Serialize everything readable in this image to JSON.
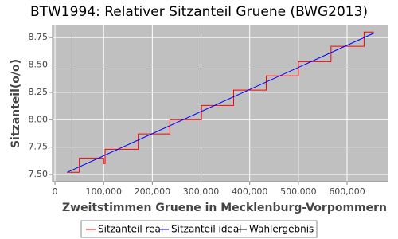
{
  "chart_data": {
    "type": "line",
    "title": "BTW1994: Relativer Sitzanteil Gruene (BWG2013)",
    "x_label": "Zweitstimmen Gruene in Mecklenburg-Vorpommern",
    "y_label": "Sitzanteil(o/o)",
    "xlim": [
      -5000,
      685000
    ],
    "ylim": [
      7.435,
      8.86
    ],
    "xticks": [
      0,
      {
        "value": 100000,
        "label": "100,000"
      },
      {
        "value": 200000,
        "label": "200,000"
      },
      {
        "value": 300000,
        "label": "300,000"
      },
      {
        "value": 400000,
        "label": "400,000"
      },
      {
        "value": 500000,
        "label": "500,000"
      },
      {
        "value": 600000,
        "label": "600,000"
      }
    ],
    "yticks": [
      {
        "value": 7.5,
        "label": "7.50"
      },
      7.75,
      {
        "value": 8.0,
        "label": "8.00"
      },
      8.25,
      {
        "value": 8.5,
        "label": "8.50"
      },
      8.75
    ],
    "grid": true,
    "series": [
      {
        "name": "Sitzanteil real",
        "color": "#ff0000",
        "x": [
          25000,
          50000,
          50000,
          100000,
          100000,
          103000,
          103000,
          171000,
          171000,
          236000,
          236000,
          301000,
          301000,
          367000,
          367000,
          434000,
          434000,
          500000,
          500000,
          567000,
          567000,
          635000,
          635000,
          655000
        ],
        "values": [
          7.52,
          7.52,
          7.65,
          7.65,
          7.6,
          7.6,
          7.73,
          7.73,
          7.87,
          7.87,
          8.0,
          8.0,
          8.13,
          8.13,
          8.27,
          8.27,
          8.4,
          8.4,
          8.53,
          8.53,
          8.67,
          8.67,
          8.8,
          8.8
        ]
      },
      {
        "name": "Sitzanteil ideal",
        "color": "#0000ff",
        "x": [
          25000,
          655000
        ],
        "values": [
          7.52,
          8.79
        ]
      },
      {
        "name": "Wahlergebnis",
        "color": "#000000",
        "x": [
          35000,
          35000
        ],
        "values": [
          7.51,
          8.8
        ]
      }
    ]
  }
}
